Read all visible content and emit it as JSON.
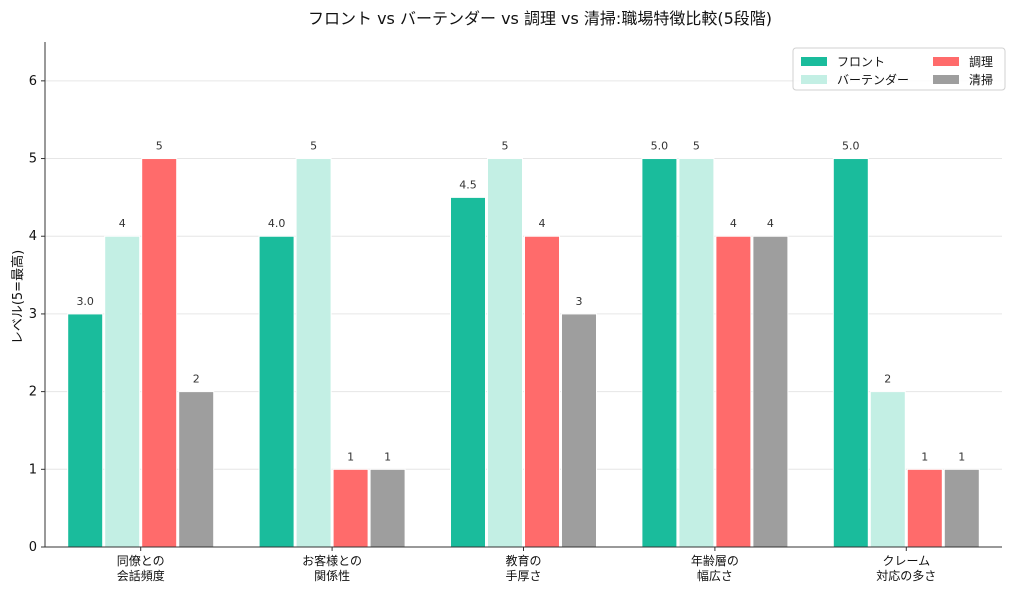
{
  "chart_data": {
    "type": "bar",
    "title": "フロント vs バーテンダー vs 調理 vs 清掃:職場特徴比較(5段階)",
    "xlabel": "",
    "ylabel": "レベル(5=最高)",
    "ylim": [
      0,
      6.5
    ],
    "yticks": [
      0,
      1,
      2,
      3,
      4,
      5,
      6
    ],
    "grid": "y",
    "legend_position": "top-right",
    "categories": [
      [
        "同僚との",
        "会話頻度"
      ],
      [
        "お客様との",
        "関係性"
      ],
      [
        "教育の",
        "手厚さ"
      ],
      [
        "年齢層の",
        "幅広さ"
      ],
      [
        "クレーム",
        "対応の多さ"
      ]
    ],
    "series": [
      {
        "name": "フロント",
        "color": "#1abc9c",
        "values": [
          3.0,
          4.0,
          4.5,
          5.0,
          5.0
        ],
        "labels": [
          "3.0",
          "4.0",
          "4.5",
          "5.0",
          "5.0"
        ]
      },
      {
        "name": "バーテンダー",
        "color": "#c3efe4",
        "values": [
          4,
          5,
          5,
          5,
          2
        ],
        "labels": [
          "4",
          "5",
          "5",
          "5",
          "2"
        ]
      },
      {
        "name": "調理",
        "color": "#ff6b6b",
        "values": [
          5,
          1,
          4,
          4,
          1
        ],
        "labels": [
          "5",
          "1",
          "4",
          "4",
          "1"
        ]
      },
      {
        "name": "清掃",
        "color": "#9e9e9e",
        "values": [
          2,
          1,
          3,
          4,
          1
        ],
        "labels": [
          "2",
          "1",
          "3",
          "4",
          "1"
        ]
      }
    ]
  }
}
